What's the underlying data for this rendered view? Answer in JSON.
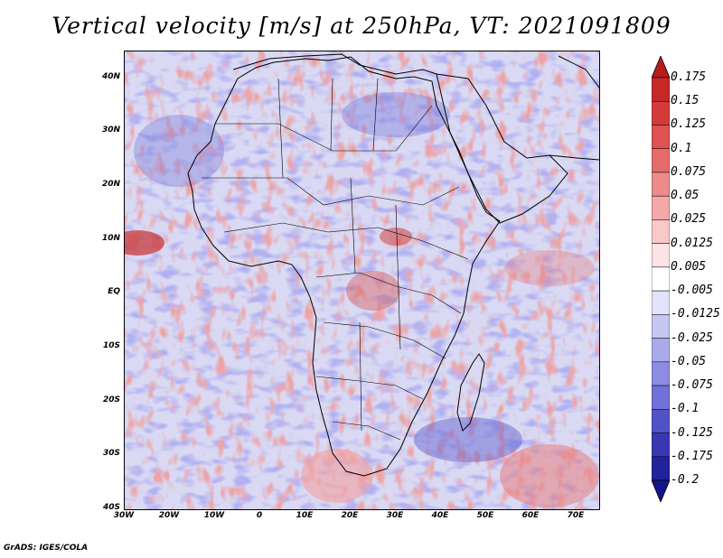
{
  "title": "Vertical velocity [m/s] at 250hPa, VT: 2021091809",
  "credit": "GrADS: IGES/COLA",
  "map": {
    "lon_range": [
      -30,
      75
    ],
    "lat_range": [
      -40,
      45
    ],
    "lat_labels": [
      {
        "text": "40N",
        "lat": 40
      },
      {
        "text": "30N",
        "lat": 30
      },
      {
        "text": "20N",
        "lat": 20
      },
      {
        "text": "10N",
        "lat": 10
      },
      {
        "text": "EQ",
        "lat": 0
      },
      {
        "text": "10S",
        "lat": -10
      },
      {
        "text": "20S",
        "lat": -20
      },
      {
        "text": "30S",
        "lat": -30
      },
      {
        "text": "40S",
        "lat": -40
      }
    ],
    "lon_labels": [
      {
        "text": "30W",
        "lon": -30
      },
      {
        "text": "20W",
        "lon": -20
      },
      {
        "text": "10W",
        "lon": -10
      },
      {
        "text": "0",
        "lon": 0
      },
      {
        "text": "10E",
        "lon": 10
      },
      {
        "text": "20E",
        "lon": 20
      },
      {
        "text": "30E",
        "lon": 30
      },
      {
        "text": "40E",
        "lon": 40
      },
      {
        "text": "50E",
        "lon": 50
      },
      {
        "text": "60E",
        "lon": 60
      },
      {
        "text": "70E",
        "lon": 70
      }
    ]
  },
  "colorbar": {
    "labels": [
      "0.175",
      "0.15",
      "0.125",
      "0.1",
      "0.075",
      "0.05",
      "0.025",
      "0.0125",
      "0.005",
      "-0.005",
      "-0.0125",
      "-0.025",
      "-0.05",
      "-0.075",
      "-0.1",
      "-0.125",
      "-0.175",
      "-0.2"
    ],
    "colors": [
      "#b71c1c",
      "#c62828",
      "#d43a3a",
      "#de5252",
      "#e66c6c",
      "#ee8a8a",
      "#f4a8a8",
      "#f9c8c8",
      "#fce4e4",
      "#ffffff",
      "#e2e2fa",
      "#c6c6f2",
      "#aaaaea",
      "#8c8ce2",
      "#7070d8",
      "#5252c8",
      "#3838b2",
      "#22229a",
      "#14148a"
    ]
  }
}
